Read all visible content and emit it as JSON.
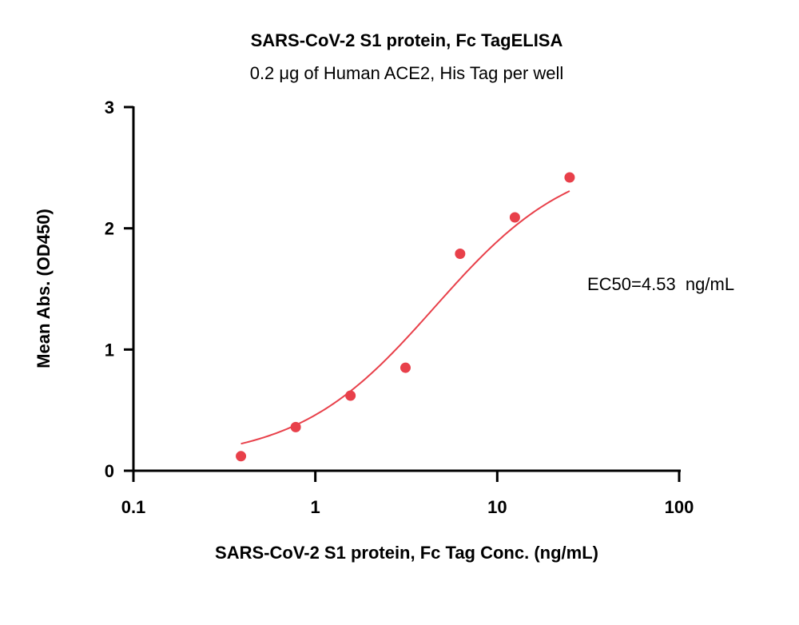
{
  "chart_data": {
    "type": "scatter",
    "title": "SARS-CoV-2 S1 protein, Fc TagELISA",
    "subtitle": "0.2 μg of Human ACE2, His Tag per well",
    "xlabel": "SARS-CoV-2 S1 protein, Fc Tag Conc. (ng/mL)",
    "ylabel": "Mean Abs. (OD450)",
    "xscale": "log",
    "xlim": [
      0.1,
      100
    ],
    "ylim": [
      0,
      3
    ],
    "x_ticks": [
      {
        "value": 0.1,
        "label": "0.1"
      },
      {
        "value": 1,
        "label": "1"
      },
      {
        "value": 10,
        "label": "10"
      },
      {
        "value": 100,
        "label": "100"
      }
    ],
    "y_ticks": [
      {
        "value": 0,
        "label": "0"
      },
      {
        "value": 1,
        "label": "1"
      },
      {
        "value": 2,
        "label": "2"
      },
      {
        "value": 3,
        "label": "3"
      }
    ],
    "grid": false,
    "legend": "none",
    "series": [
      {
        "x": [
          0.39,
          0.78,
          1.56,
          3.13,
          6.25,
          12.5,
          25
        ],
        "y": [
          0.12,
          0.36,
          0.62,
          0.85,
          1.79,
          2.09,
          2.42
        ],
        "color": "#e8404a",
        "fit": "4PL",
        "fit_params": {
          "bottom": 0.08,
          "top": 2.62,
          "ec50": 4.53,
          "hill": 1.15
        },
        "fit_range": [
          0.39,
          25
        ]
      }
    ],
    "annotations": [
      {
        "text": "EC50=4.53  ng/mL"
      }
    ]
  }
}
